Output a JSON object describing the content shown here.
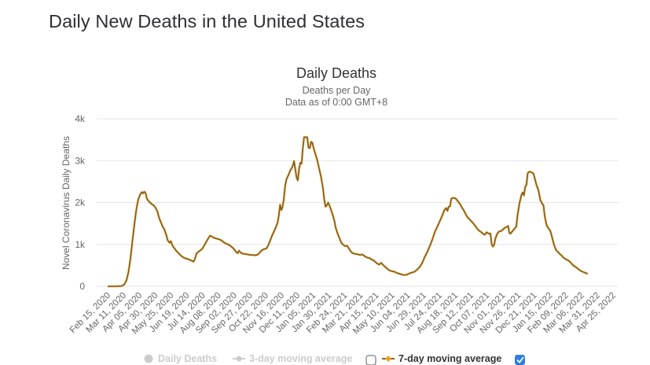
{
  "page": {
    "title": "Daily New Deaths in the United States"
  },
  "chart_data": {
    "type": "line",
    "title": "Daily Deaths",
    "subtitle_lines": [
      "Deaths per Day",
      "Data as of 0:00 GMT+8"
    ],
    "ylabel": "Novel Coronavirus Daily Deaths",
    "xlabel": "",
    "ylim": [
      0,
      4000
    ],
    "y_ticks": [
      {
        "value": 0,
        "label": "0"
      },
      {
        "value": 1000,
        "label": "1k"
      },
      {
        "value": 2000,
        "label": "2k"
      },
      {
        "value": 3000,
        "label": "3k"
      },
      {
        "value": 4000,
        "label": "4k"
      }
    ],
    "x_start_date": "2020-02-15",
    "x_end_day": 803,
    "x_tick_interval_days": 25,
    "x_tick_labels": [
      "Feb 15, 2020",
      "Mar 11, 2020",
      "Apr 05, 2020",
      "Apr 30, 2020",
      "May 25, 2020",
      "Jun 19, 2020",
      "Jul 14, 2020",
      "Aug 08, 2020",
      "Sep 02, 2020",
      "Sep 27, 2020",
      "Oct 22, 2020",
      "Nov 16, 2020",
      "Dec 11, 2020",
      "Jan 05, 2021",
      "Jan 30, 2021",
      "Feb 24, 2021",
      "Mar 21, 2021",
      "Apr 15, 2021",
      "May 10, 2021",
      "Jun 04, 2021",
      "Jun 29, 2021",
      "Jul 24, 2021",
      "Aug 18, 2021",
      "Sep 12, 2021",
      "Oct 07, 2021",
      "Nov 01, 2021",
      "Nov 26, 2021",
      "Dec 21, 2021",
      "Jan 15, 2022",
      "Feb 09, 2022",
      "Mar 06, 2022",
      "Mar 31, 2022",
      "Apr 25, 2022"
    ],
    "grid": true,
    "legend_position": "bottom",
    "series": [
      {
        "name": "7-day moving average",
        "color": "#8b5e1a",
        "visible": true,
        "points_day_value": [
          [
            0,
            0
          ],
          [
            15,
            2
          ],
          [
            22,
            10
          ],
          [
            26,
            40
          ],
          [
            30,
            150
          ],
          [
            33,
            350
          ],
          [
            36,
            650
          ],
          [
            39,
            1050
          ],
          [
            42,
            1450
          ],
          [
            45,
            1800
          ],
          [
            48,
            2050
          ],
          [
            51,
            2180
          ],
          [
            54,
            2250
          ],
          [
            56,
            2220
          ],
          [
            58,
            2260
          ],
          [
            60,
            2230
          ],
          [
            62,
            2100
          ],
          [
            64,
            2050
          ],
          [
            67,
            2000
          ],
          [
            70,
            1960
          ],
          [
            73,
            1930
          ],
          [
            76,
            1870
          ],
          [
            79,
            1780
          ],
          [
            81,
            1650
          ],
          [
            84,
            1540
          ],
          [
            87,
            1430
          ],
          [
            90,
            1350
          ],
          [
            93,
            1220
          ],
          [
            95,
            1100
          ],
          [
            98,
            1040
          ],
          [
            100,
            1080
          ],
          [
            102,
            990
          ],
          [
            105,
            920
          ],
          [
            109,
            840
          ],
          [
            113,
            780
          ],
          [
            117,
            720
          ],
          [
            121,
            680
          ],
          [
            125,
            660
          ],
          [
            129,
            640
          ],
          [
            133,
            610
          ],
          [
            136,
            590
          ],
          [
            138,
            650
          ],
          [
            141,
            790
          ],
          [
            144,
            830
          ],
          [
            147,
            860
          ],
          [
            150,
            900
          ],
          [
            153,
            980
          ],
          [
            156,
            1060
          ],
          [
            159,
            1140
          ],
          [
            162,
            1210
          ],
          [
            165,
            1190
          ],
          [
            168,
            1160
          ],
          [
            171,
            1150
          ],
          [
            174,
            1130
          ],
          [
            177,
            1120
          ],
          [
            180,
            1100
          ],
          [
            183,
            1060
          ],
          [
            186,
            1030
          ],
          [
            189,
            1010
          ],
          [
            192,
            990
          ],
          [
            195,
            960
          ],
          [
            198,
            920
          ],
          [
            201,
            870
          ],
          [
            204,
            810
          ],
          [
            206,
            790
          ],
          [
            208,
            850
          ],
          [
            211,
            800
          ],
          [
            214,
            780
          ],
          [
            218,
            770
          ],
          [
            222,
            760
          ],
          [
            226,
            750
          ],
          [
            230,
            750
          ],
          [
            234,
            740
          ],
          [
            238,
            760
          ],
          [
            242,
            830
          ],
          [
            245,
            870
          ],
          [
            248,
            890
          ],
          [
            251,
            900
          ],
          [
            254,
            970
          ],
          [
            257,
            1080
          ],
          [
            260,
            1200
          ],
          [
            263,
            1300
          ],
          [
            266,
            1400
          ],
          [
            269,
            1520
          ],
          [
            271,
            1700
          ],
          [
            273,
            1950
          ],
          [
            275,
            1820
          ],
          [
            277,
            1900
          ],
          [
            279,
            2100
          ],
          [
            281,
            2400
          ],
          [
            283,
            2550
          ],
          [
            286,
            2650
          ],
          [
            289,
            2760
          ],
          [
            292,
            2840
          ],
          [
            294,
            2930
          ],
          [
            295,
            2990
          ],
          [
            297,
            2800
          ],
          [
            299,
            2600
          ],
          [
            301,
            2530
          ],
          [
            303,
            2800
          ],
          [
            305,
            2950
          ],
          [
            307,
            2930
          ],
          [
            309,
            3300
          ],
          [
            311,
            3560
          ],
          [
            314,
            3560
          ],
          [
            316,
            3560
          ],
          [
            318,
            3310
          ],
          [
            320,
            3300
          ],
          [
            322,
            3450
          ],
          [
            324,
            3430
          ],
          [
            326,
            3300
          ],
          [
            329,
            3150
          ],
          [
            332,
            3000
          ],
          [
            335,
            2800
          ],
          [
            338,
            2600
          ],
          [
            341,
            2330
          ],
          [
            343,
            2060
          ],
          [
            345,
            1900
          ],
          [
            347,
            1930
          ],
          [
            349,
            2000
          ],
          [
            351,
            1930
          ],
          [
            353,
            1850
          ],
          [
            356,
            1720
          ],
          [
            359,
            1560
          ],
          [
            361,
            1400
          ],
          [
            364,
            1260
          ],
          [
            367,
            1150
          ],
          [
            370,
            1040
          ],
          [
            373,
            990
          ],
          [
            376,
            960
          ],
          [
            379,
            970
          ],
          [
            382,
            900
          ],
          [
            385,
            830
          ],
          [
            388,
            790
          ],
          [
            391,
            780
          ],
          [
            394,
            770
          ],
          [
            397,
            760
          ],
          [
            400,
            750
          ],
          [
            403,
            760
          ],
          [
            406,
            730
          ],
          [
            409,
            700
          ],
          [
            412,
            680
          ],
          [
            415,
            670
          ],
          [
            418,
            640
          ],
          [
            421,
            620
          ],
          [
            424,
            580
          ],
          [
            427,
            540
          ],
          [
            430,
            520
          ],
          [
            433,
            560
          ],
          [
            436,
            510
          ],
          [
            439,
            470
          ],
          [
            442,
            430
          ],
          [
            446,
            380
          ],
          [
            450,
            360
          ],
          [
            454,
            350
          ],
          [
            458,
            320
          ],
          [
            462,
            300
          ],
          [
            466,
            280
          ],
          [
            470,
            270
          ],
          [
            474,
            280
          ],
          [
            478,
            310
          ],
          [
            482,
            330
          ],
          [
            486,
            350
          ],
          [
            490,
            400
          ],
          [
            494,
            460
          ],
          [
            498,
            560
          ],
          [
            502,
            700
          ],
          [
            506,
            820
          ],
          [
            510,
            960
          ],
          [
            514,
            1120
          ],
          [
            518,
            1300
          ],
          [
            522,
            1430
          ],
          [
            526,
            1560
          ],
          [
            530,
            1700
          ],
          [
            533,
            1820
          ],
          [
            536,
            1870
          ],
          [
            538,
            1800
          ],
          [
            540,
            1900
          ],
          [
            542,
            1910
          ],
          [
            544,
            2090
          ],
          [
            546,
            2110
          ],
          [
            549,
            2110
          ],
          [
            552,
            2080
          ],
          [
            555,
            2020
          ],
          [
            558,
            1960
          ],
          [
            561,
            1880
          ],
          [
            564,
            1810
          ],
          [
            567,
            1720
          ],
          [
            570,
            1640
          ],
          [
            573,
            1600
          ],
          [
            576,
            1550
          ],
          [
            579,
            1500
          ],
          [
            582,
            1440
          ],
          [
            585,
            1380
          ],
          [
            588,
            1330
          ],
          [
            591,
            1300
          ],
          [
            594,
            1260
          ],
          [
            597,
            1230
          ],
          [
            600,
            1290
          ],
          [
            603,
            1260
          ],
          [
            606,
            1260
          ],
          [
            608,
            1000
          ],
          [
            610,
            950
          ],
          [
            612,
            1000
          ],
          [
            614,
            1150
          ],
          [
            617,
            1260
          ],
          [
            620,
            1310
          ],
          [
            623,
            1320
          ],
          [
            626,
            1360
          ],
          [
            629,
            1400
          ],
          [
            632,
            1420
          ],
          [
            634,
            1440
          ],
          [
            636,
            1270
          ],
          [
            638,
            1260
          ],
          [
            641,
            1320
          ],
          [
            644,
            1370
          ],
          [
            647,
            1430
          ],
          [
            649,
            1700
          ],
          [
            652,
            1980
          ],
          [
            655,
            2180
          ],
          [
            657,
            2240
          ],
          [
            659,
            2170
          ],
          [
            661,
            2370
          ],
          [
            663,
            2420
          ],
          [
            665,
            2700
          ],
          [
            668,
            2740
          ],
          [
            671,
            2720
          ],
          [
            674,
            2700
          ],
          [
            676,
            2590
          ],
          [
            679,
            2420
          ],
          [
            682,
            2290
          ],
          [
            685,
            2060
          ],
          [
            688,
            1970
          ],
          [
            690,
            1930
          ],
          [
            692,
            1670
          ],
          [
            695,
            1460
          ],
          [
            698,
            1380
          ],
          [
            701,
            1320
          ],
          [
            704,
            1150
          ],
          [
            707,
            980
          ],
          [
            710,
            860
          ],
          [
            713,
            820
          ],
          [
            716,
            770
          ],
          [
            719,
            730
          ],
          [
            722,
            680
          ],
          [
            725,
            650
          ],
          [
            728,
            630
          ],
          [
            731,
            600
          ],
          [
            734,
            550
          ],
          [
            737,
            500
          ],
          [
            740,
            470
          ],
          [
            743,
            440
          ],
          [
            746,
            400
          ],
          [
            749,
            370
          ],
          [
            752,
            350
          ],
          [
            755,
            330
          ],
          [
            758,
            310
          ],
          [
            760,
            300
          ]
        ]
      }
    ]
  },
  "legend": {
    "items": [
      {
        "label": "Daily Deaths",
        "state": "hidden",
        "icon": "circle-marker-icon"
      },
      {
        "label": "3-day moving average",
        "state": "hidden",
        "icon": "line-marker-icon",
        "checkbox_checked": false
      },
      {
        "label": "7-day moving average",
        "state": "visible",
        "icon": "line-marker-icon",
        "checkbox_checked": true
      }
    ],
    "colors": {
      "inactive": "#cccccc",
      "active_line": "#8b5e1a",
      "active_marker": "#e8a317",
      "checkbox_checked": "#2f7de1"
    }
  }
}
